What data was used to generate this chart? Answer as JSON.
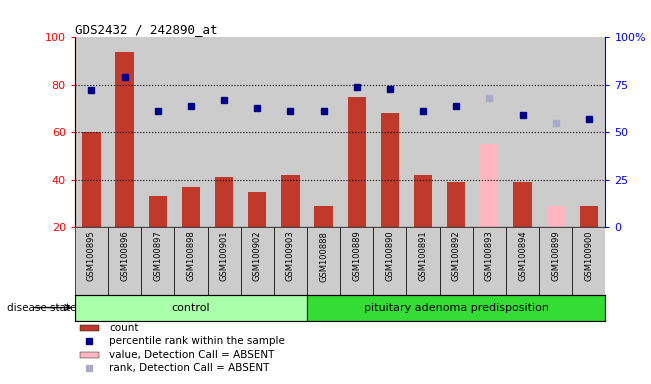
{
  "title": "GDS2432 / 242890_at",
  "samples": [
    "GSM100895",
    "GSM100896",
    "GSM100897",
    "GSM100898",
    "GSM100901",
    "GSM100902",
    "GSM100903",
    "GSM100888",
    "GSM100889",
    "GSM100890",
    "GSM100891",
    "GSM100892",
    "GSM100893",
    "GSM100894",
    "GSM100899",
    "GSM100900"
  ],
  "bar_values": [
    60,
    94,
    33,
    37,
    41,
    35,
    42,
    29,
    75,
    68,
    42,
    39,
    null,
    39,
    null,
    29
  ],
  "bar_absent_values": [
    null,
    null,
    null,
    null,
    null,
    null,
    null,
    null,
    null,
    null,
    null,
    null,
    55,
    null,
    29,
    null
  ],
  "dot_values": [
    72,
    79,
    61,
    64,
    67,
    63,
    61,
    61,
    74,
    73,
    61,
    64,
    null,
    59,
    null,
    57
  ],
  "dot_absent_values": [
    null,
    null,
    null,
    null,
    null,
    null,
    null,
    null,
    null,
    null,
    null,
    null,
    68,
    null,
    55,
    null
  ],
  "control_count": 7,
  "disease_count": 9,
  "control_label": "control",
  "disease_label": "pituitary adenoma predisposition",
  "disease_state_label": "disease state",
  "ylim_left": [
    20,
    100
  ],
  "ylim_right": [
    0,
    100
  ],
  "yticks_left": [
    20,
    40,
    60,
    80,
    100
  ],
  "yticks_right": [
    0,
    25,
    50,
    75,
    100
  ],
  "ytick_right_labels": [
    "0",
    "25",
    "50",
    "75",
    "100%"
  ],
  "bar_color": "#C0392B",
  "bar_absent_color": "#FFB6C1",
  "dot_color": "#00008B",
  "dot_absent_color": "#AAAACC",
  "legend_items": [
    {
      "label": "count",
      "color": "#C0392B",
      "type": "bar"
    },
    {
      "label": "percentile rank within the sample",
      "color": "#00008B",
      "type": "dot"
    },
    {
      "label": "value, Detection Call = ABSENT",
      "color": "#FFB6C1",
      "type": "bar"
    },
    {
      "label": "rank, Detection Call = ABSENT",
      "color": "#AAAACC",
      "type": "dot"
    }
  ],
  "background_color": "#CCCCCC",
  "control_bg": "#AAFFAA",
  "disease_bg": "#33DD33",
  "dot_size": 4,
  "bar_width": 0.55
}
